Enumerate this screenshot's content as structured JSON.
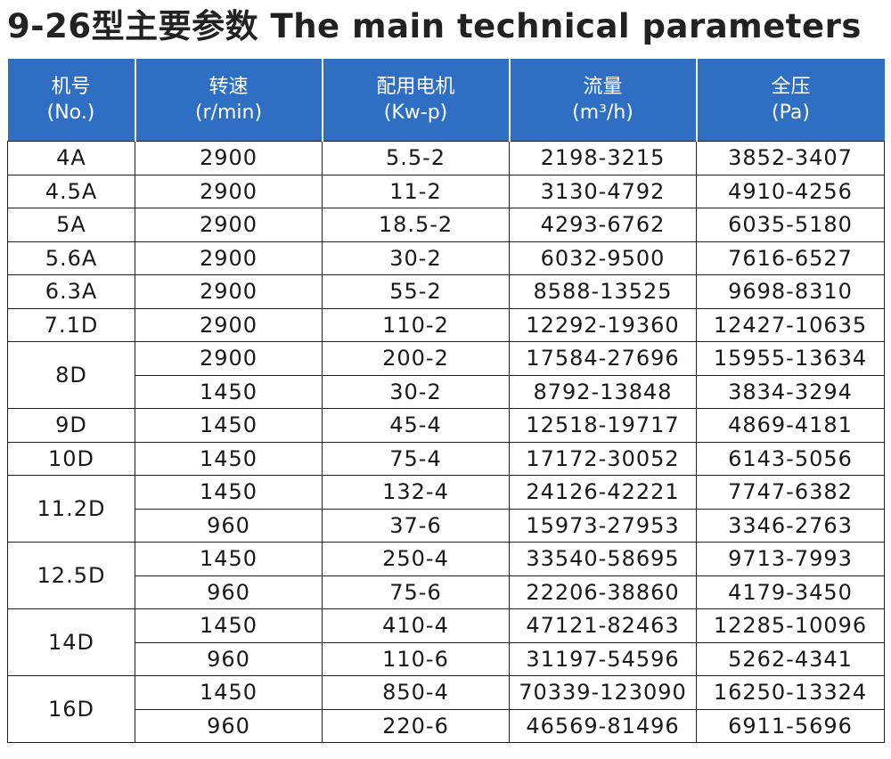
{
  "title": "9-26型主要参数 The main technical parameters",
  "headers": [
    {
      "zh": "机号",
      "en": "(No.)"
    },
    {
      "zh": "转速",
      "en": "(r/min)"
    },
    {
      "zh": "配用电机",
      "en": "(Kw-p)"
    },
    {
      "zh": "流量",
      "en": "(m³/h)"
    },
    {
      "zh": "全压",
      "en": "(Pa)"
    }
  ],
  "rows": [
    {
      "model": "4A",
      "speed": "2900",
      "motor": "5.5-2",
      "flow": "2198-3215",
      "pressure": "3852-3407"
    },
    {
      "model": "4.5A",
      "speed": "2900",
      "motor": "11-2",
      "flow": "3130-4792",
      "pressure": "4910-4256"
    },
    {
      "model": "5A",
      "speed": "2900",
      "motor": "18.5-2",
      "flow": "4293-6762",
      "pressure": "6035-5180"
    },
    {
      "model": "5.6A",
      "speed": "2900",
      "motor": "30-2",
      "flow": "6032-9500",
      "pressure": "7616-6527"
    },
    {
      "model": "6.3A",
      "speed": "2900",
      "motor": "55-2",
      "flow": "8588-13525",
      "pressure": "9698-8310"
    },
    {
      "model": "7.1D",
      "speed": "2900",
      "motor": "110-2",
      "flow": "12292-19360",
      "pressure": "12427-10635"
    },
    {
      "model": "8D",
      "speed": "2900",
      "motor": "200-2",
      "flow": "17584-27696",
      "pressure": "15955-13634"
    },
    {
      "speed": "1450",
      "motor": "30-2",
      "flow": "8792-13848",
      "pressure": "3834-3294"
    },
    {
      "model": "9D",
      "speed": "1450",
      "motor": "45-4",
      "flow": "12518-19717",
      "pressure": "4869-4181"
    },
    {
      "model": "10D",
      "speed": "1450",
      "motor": "75-4",
      "flow": "17172-30052",
      "pressure": "6143-5056"
    },
    {
      "model": "11.2D",
      "speed": "1450",
      "motor": "132-4",
      "flow": "24126-42221",
      "pressure": "7747-6382"
    },
    {
      "speed": "960",
      "motor": "37-6",
      "flow": "15973-27953",
      "pressure": "3346-2763"
    },
    {
      "model": "12.5D",
      "speed": "1450",
      "motor": "250-4",
      "flow": "33540-58695",
      "pressure": "9713-7993"
    },
    {
      "speed": "960",
      "motor": "75-6",
      "flow": "22206-38860",
      "pressure": "4179-3450"
    },
    {
      "model": "14D",
      "speed": "1450",
      "motor": "410-4",
      "flow": "47121-82463",
      "pressure": "12285-10096"
    },
    {
      "speed": "960",
      "motor": "110-6",
      "flow": "31197-54596",
      "pressure": "5262-4341"
    },
    {
      "model": "16D",
      "speed": "1450",
      "motor": "850-4",
      "flow": "70339-123090",
      "pressure": "16250-13324"
    },
    {
      "speed": "960",
      "motor": "220-6",
      "flow": "46569-81496",
      "pressure": "6911-5696"
    }
  ]
}
